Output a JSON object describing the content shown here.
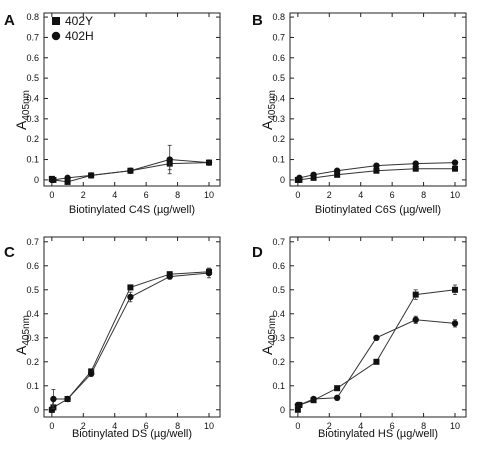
{
  "legend": [
    {
      "marker": "square",
      "label": "402Y"
    },
    {
      "marker": "circle",
      "label": "402H"
    }
  ],
  "chart_data": [
    {
      "type": "line",
      "panel": "A",
      "ylabel": {
        "main": "A",
        "sub": "405nm"
      },
      "xlabel": "Biotinylated C4S (µg/well)",
      "x": [
        0,
        0.1,
        1,
        2.5,
        5,
        7.5,
        10
      ],
      "xticks": [
        0,
        2,
        4,
        6,
        8,
        10
      ],
      "yticks": [
        0,
        0.1,
        0.2,
        0.3,
        0.4,
        0.5,
        0.6,
        0.7,
        0.8
      ],
      "xlim": [
        -0.5,
        10.7
      ],
      "ylim": [
        -0.03,
        0.82
      ],
      "series": [
        {
          "name": "402Y",
          "marker": "square",
          "values": [
            0.005,
            0.0,
            -0.01,
            0.022,
            0.045,
            0.08,
            0.085
          ],
          "err": [
            0,
            0,
            0,
            0,
            0,
            0.03,
            0
          ]
        },
        {
          "name": "402H",
          "marker": "circle",
          "values": [
            0.0,
            0.0,
            0.01,
            0.022,
            0.045,
            0.1,
            0.085
          ],
          "err": [
            0,
            0,
            0,
            0,
            0,
            0.07,
            0
          ]
        }
      ]
    },
    {
      "type": "line",
      "panel": "B",
      "ylabel": {
        "main": "A",
        "sub": "405nm"
      },
      "xlabel": "Biotinylated C6S (µg/well)",
      "x": [
        0,
        0.1,
        1,
        2.5,
        5,
        7.5,
        10
      ],
      "xticks": [
        0,
        2,
        4,
        6,
        8,
        10
      ],
      "yticks": [
        0,
        0.1,
        0.2,
        0.3,
        0.4,
        0.5,
        0.6,
        0.7,
        0.8
      ],
      "xlim": [
        -0.5,
        10.7
      ],
      "ylim": [
        -0.03,
        0.82
      ],
      "series": [
        {
          "name": "402Y",
          "marker": "square",
          "values": [
            0.0,
            0.0,
            0.01,
            0.025,
            0.045,
            0.055,
            0.055
          ],
          "err": [
            0,
            0,
            0,
            0,
            0,
            0,
            0
          ]
        },
        {
          "name": "402H",
          "marker": "circle",
          "values": [
            0.0,
            0.01,
            0.025,
            0.045,
            0.07,
            0.08,
            0.085
          ],
          "err": [
            0,
            0,
            0,
            0,
            0,
            0,
            0
          ]
        }
      ]
    },
    {
      "type": "line",
      "panel": "C",
      "ylabel": {
        "main": "A",
        "sub": "405nm"
      },
      "xlabel": "Biotinylated DS (µg/well)",
      "x": [
        0,
        0.1,
        1,
        2.5,
        5,
        7.5,
        10
      ],
      "xticks": [
        0,
        2,
        4,
        6,
        8,
        10
      ],
      "yticks": [
        0,
        0.1,
        0.2,
        0.3,
        0.4,
        0.5,
        0.6,
        0.7
      ],
      "xlim": [
        -0.5,
        10.7
      ],
      "ylim": [
        -0.03,
        0.72
      ],
      "series": [
        {
          "name": "402Y",
          "marker": "square",
          "values": [
            0.0,
            0.01,
            0.045,
            0.16,
            0.51,
            0.565,
            0.575
          ],
          "err": [
            0,
            0,
            0,
            0,
            0.01,
            0.01,
            0.015
          ]
        },
        {
          "name": "402H",
          "marker": "circle",
          "values": [
            0.0,
            0.045,
            0.045,
            0.15,
            0.47,
            0.555,
            0.57
          ],
          "err": [
            0,
            0.04,
            0,
            0,
            0.02,
            0.01,
            0.02
          ]
        }
      ]
    },
    {
      "type": "line",
      "panel": "D",
      "ylabel": {
        "main": "A",
        "sub": "405nm"
      },
      "xlabel": "Biotinylated HS (µg/well)",
      "x": [
        0,
        0.1,
        1,
        2.5,
        5,
        7.5,
        10
      ],
      "xticks": [
        0,
        2,
        4,
        6,
        8,
        10
      ],
      "yticks": [
        0,
        0.1,
        0.2,
        0.3,
        0.4,
        0.5,
        0.6,
        0.7
      ],
      "xlim": [
        -0.5,
        10.7
      ],
      "ylim": [
        -0.03,
        0.72
      ],
      "series": [
        {
          "name": "402Y",
          "marker": "square",
          "values": [
            0.0,
            0.02,
            0.04,
            0.09,
            0.2,
            0.48,
            0.5
          ],
          "err": [
            0,
            0,
            0,
            0,
            0,
            0.02,
            0.02
          ]
        },
        {
          "name": "402H",
          "marker": "circle",
          "values": [
            0.02,
            0.02,
            0.045,
            0.05,
            0.3,
            0.375,
            0.36
          ],
          "err": [
            0,
            0,
            0,
            0,
            0,
            0.015,
            0.015
          ]
        }
      ]
    }
  ]
}
